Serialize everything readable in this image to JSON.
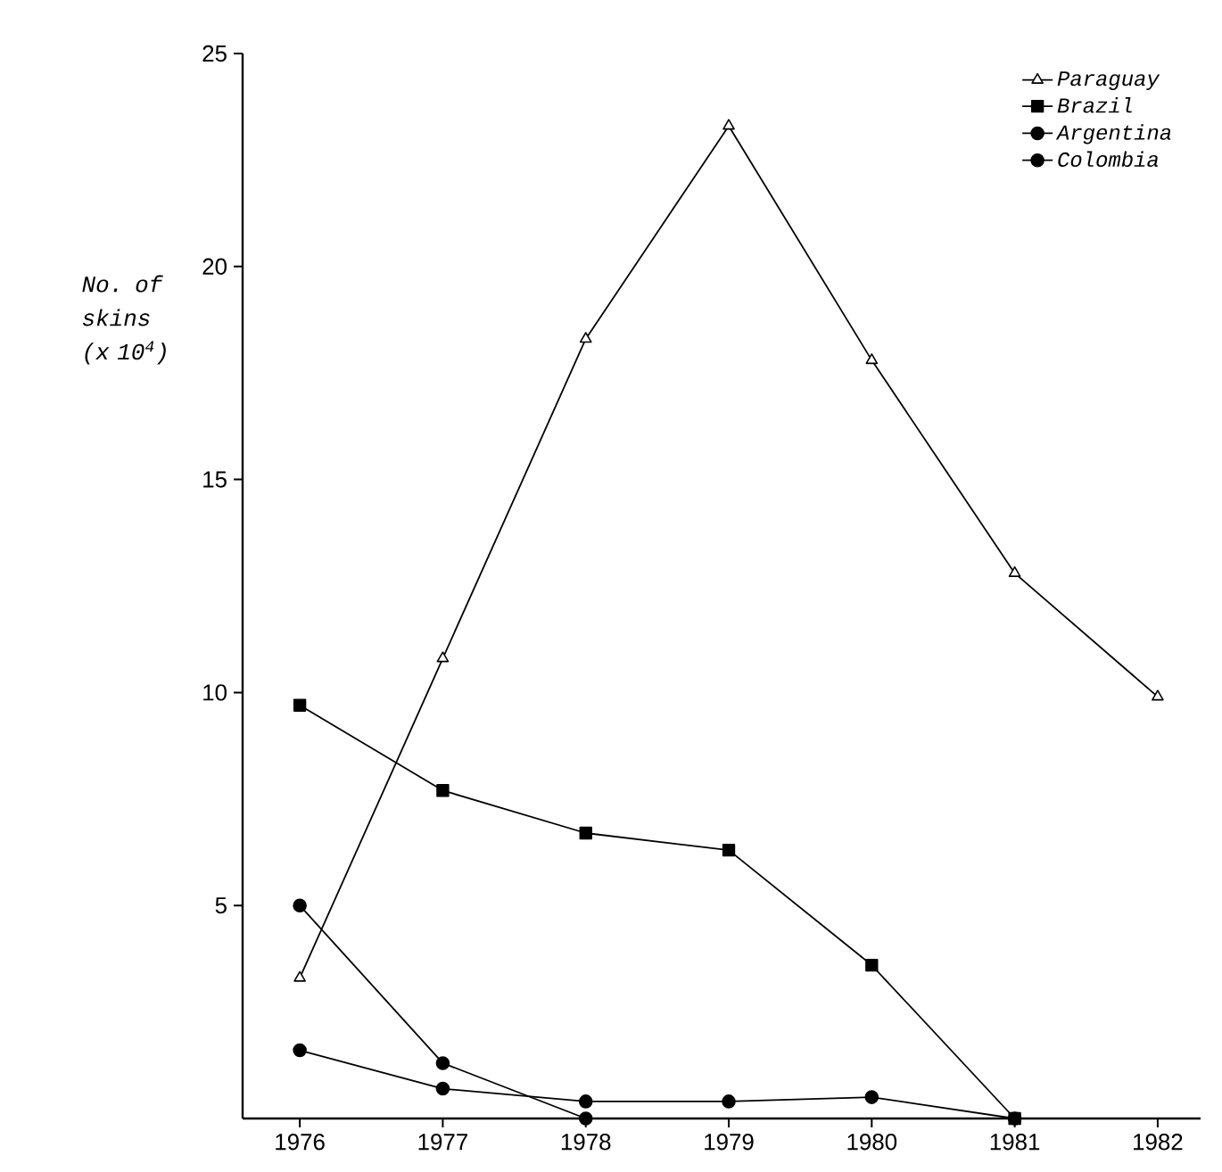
{
  "chart_data": {
    "type": "line",
    "ylabel": "No. of skins (x 10$^{4}$)",
    "x": [
      1976,
      1977,
      1978,
      1979,
      1980,
      1981,
      1982
    ],
    "xlim": [
      1975.6,
      1982.3
    ],
    "xticks": [
      1976,
      1977,
      1978,
      1979,
      1980,
      1981,
      1982
    ],
    "ylim": [
      0,
      25
    ],
    "yticks": [
      5,
      10,
      15,
      20,
      25
    ],
    "grid": false,
    "legend": "top right",
    "line_style": "solid",
    "series": [
      {
        "name": "Paraguay",
        "color": "#000000",
        "marker": "triangle",
        "values": [
          3.3,
          10.8,
          18.3,
          23.3,
          17.8,
          12.8,
          9.9
        ]
      },
      {
        "name": "Brazil",
        "color": "#000000",
        "marker": "square",
        "values": [
          9.7,
          7.7,
          6.7,
          6.3,
          3.6,
          0,
          null
        ]
      },
      {
        "name": "Argentina",
        "color": "#000000",
        "marker": "circle",
        "values": [
          5.0,
          1.3,
          0,
          null,
          null,
          null,
          null
        ]
      },
      {
        "name": "Colombia",
        "color": "#000000",
        "marker": "circle",
        "values": [
          1.6,
          0.7,
          0.4,
          0.4,
          0.5,
          0,
          null
        ]
      }
    ]
  }
}
